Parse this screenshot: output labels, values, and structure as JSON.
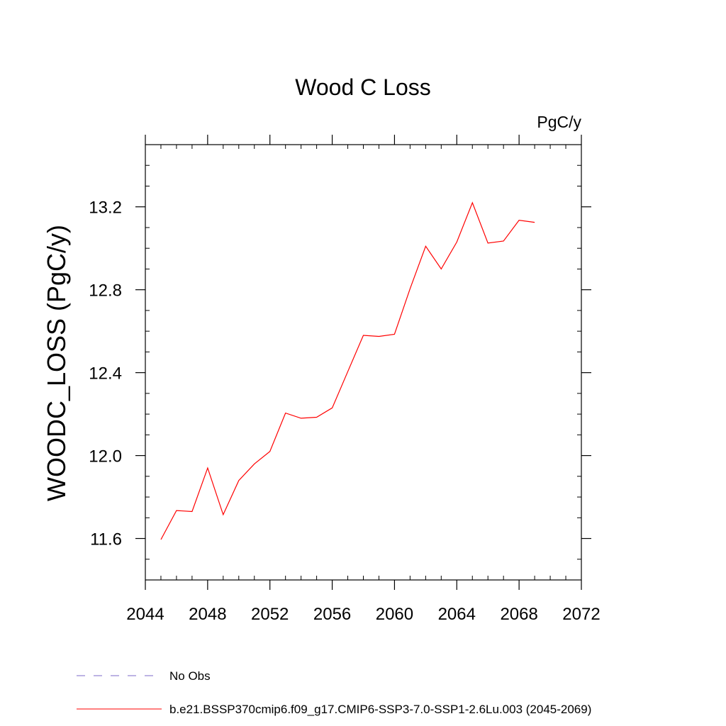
{
  "chart_data": {
    "type": "line",
    "title": "Wood C Loss",
    "units_label": "PgC/y",
    "xlabel": "",
    "ylabel": "WOODC_LOSS  (PgC/y)",
    "xlim": [
      2044,
      2072
    ],
    "ylim": [
      11.4,
      13.5
    ],
    "x_ticks": [
      2044,
      2048,
      2052,
      2056,
      2060,
      2064,
      2068,
      2072
    ],
    "y_ticks": [
      11.6,
      12.0,
      12.4,
      12.8,
      13.2
    ],
    "x_tick_labels": [
      "2044",
      "2048",
      "2052",
      "2056",
      "2060",
      "2064",
      "2068",
      "2072"
    ],
    "y_tick_labels": [
      "11.6",
      "12.0",
      "12.4",
      "12.8",
      "13.2"
    ],
    "grid": false,
    "legend_position": "bottom",
    "series": [
      {
        "name": "b.e21.BSSP370cmip6.f09_g17.CMIP6-SSP3-7.0-SSP1-2.6Lu.003 (2045-2069)",
        "color": "#ff0000",
        "x": [
          2045,
          2046,
          2047,
          2048,
          2049,
          2050,
          2051,
          2052,
          2053,
          2054,
          2055,
          2056,
          2057,
          2058,
          2059,
          2060,
          2061,
          2062,
          2063,
          2064,
          2065,
          2066,
          2067,
          2068,
          2069
        ],
        "y": [
          11.595,
          11.735,
          11.73,
          11.94,
          11.715,
          11.88,
          11.96,
          12.02,
          12.205,
          12.18,
          12.185,
          12.23,
          12.405,
          12.58,
          12.575,
          12.585,
          12.805,
          13.01,
          12.9,
          13.03,
          13.22,
          13.025,
          13.035,
          13.135,
          13.125
        ]
      }
    ],
    "legend": [
      {
        "label": "No Obs",
        "style": "dashed",
        "color": "#7b68c8"
      },
      {
        "label": "b.e21.BSSP370cmip6.f09_g17.CMIP6-SSP3-7.0-SSP1-2.6Lu.003 (2045-2069)",
        "style": "solid",
        "color": "#ff0000"
      }
    ]
  }
}
